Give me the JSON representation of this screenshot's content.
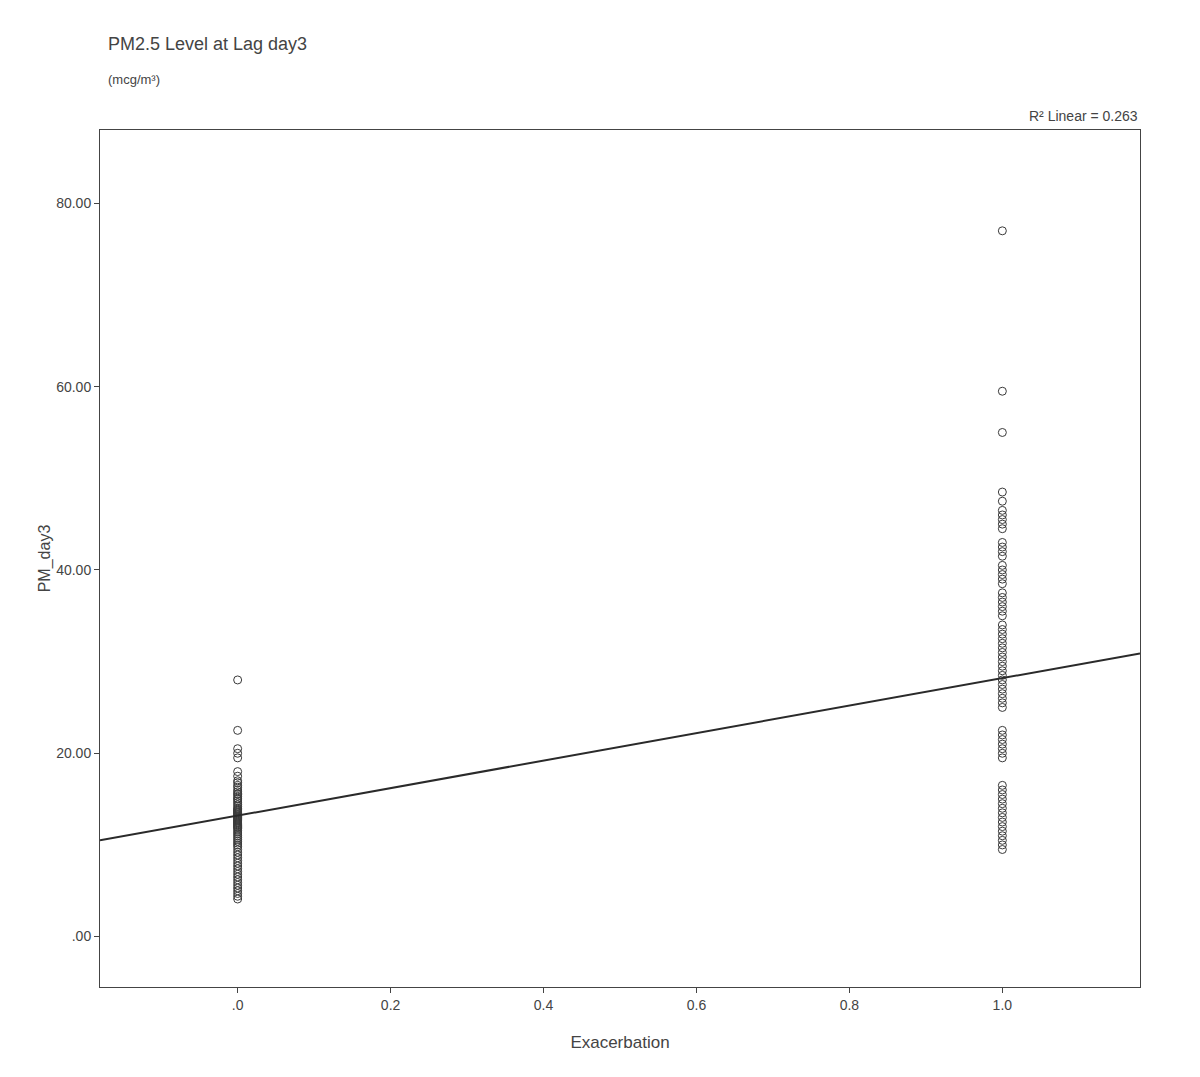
{
  "chart_data": {
    "type": "scatter",
    "title": "PM2.5 Level at Lag day3",
    "subtitle": "(mcg/m³)",
    "xlabel": "Exacerbation",
    "ylabel": "PM_day3",
    "annotations": [
      {
        "text": "R² Linear = 0.263"
      }
    ],
    "xlim": [
      -0.18,
      1.18
    ],
    "ylim": [
      -5.5,
      88
    ],
    "xticks": [
      {
        "value": 0.0,
        "label": ".0"
      },
      0.2,
      0.4,
      0.6,
      0.8,
      {
        "value": 1.0,
        "label": "1.0"
      }
    ],
    "yticks": [
      {
        "value": 0.0,
        "label": ".00"
      },
      {
        "value": 20.0,
        "label": "20.00"
      },
      {
        "value": 40.0,
        "label": "40.00"
      },
      {
        "value": 60.0,
        "label": "60.00"
      },
      {
        "value": 80.0,
        "label": "80.00"
      }
    ],
    "grid": false,
    "series": [
      {
        "type": "scatter",
        "marker": "circle-open",
        "color": "#3a3a3a",
        "x": [
          0,
          0,
          0,
          0,
          0,
          0,
          0,
          0,
          0,
          0,
          0,
          0,
          0,
          0,
          0,
          0,
          0,
          0,
          0,
          0,
          0,
          0,
          0,
          0,
          0,
          0,
          0,
          0,
          0,
          0,
          0,
          0,
          0,
          0,
          0,
          0,
          0,
          0,
          0,
          0,
          0,
          0,
          0,
          0,
          0,
          0,
          0,
          0,
          0,
          0,
          0,
          0,
          0,
          0,
          0,
          0,
          0,
          0,
          0,
          0,
          0,
          0,
          0,
          0,
          0,
          0,
          0,
          0,
          0,
          0,
          0,
          0,
          0,
          0
        ],
        "values": [
          28.0,
          22.5,
          20.5,
          20.0,
          19.5,
          18.0,
          17.5,
          17.0,
          16.8,
          16.5,
          16.3,
          16.0,
          15.8,
          15.6,
          15.5,
          15.3,
          15.1,
          15.0,
          14.8,
          14.6,
          14.4,
          14.2,
          14.0,
          13.9,
          13.8,
          13.7,
          13.6,
          13.5,
          13.4,
          13.3,
          13.2,
          13.1,
          13.0,
          12.9,
          12.8,
          12.7,
          12.6,
          12.5,
          12.4,
          12.3,
          12.2,
          12.1,
          12.0,
          11.9,
          11.8,
          11.6,
          11.4,
          11.2,
          11.0,
          10.8,
          10.6,
          10.4,
          10.2,
          10.0,
          9.8,
          9.5,
          9.2,
          8.9,
          8.6,
          8.3,
          8.0,
          7.7,
          7.4,
          7.1,
          6.8,
          6.5,
          6.2,
          5.9,
          5.6,
          5.3,
          5.0,
          4.7,
          4.4,
          4.1
        ]
      },
      {
        "type": "scatter",
        "marker": "circle-open",
        "color": "#3a3a3a",
        "x": [
          1,
          1,
          1,
          1,
          1,
          1,
          1,
          1,
          1,
          1,
          1,
          1,
          1,
          1,
          1,
          1,
          1,
          1,
          1,
          1,
          1,
          1,
          1,
          1,
          1,
          1,
          1,
          1,
          1,
          1,
          1,
          1,
          1,
          1,
          1,
          1,
          1,
          1,
          1,
          1,
          1,
          1,
          1,
          1,
          1,
          1,
          1,
          1,
          1,
          1,
          1,
          1,
          1,
          1,
          1,
          1,
          1,
          1,
          1,
          1,
          1,
          1,
          1,
          1,
          1,
          1
        ],
        "values": [
          77.0,
          59.5,
          55.0,
          48.5,
          47.5,
          46.5,
          46.0,
          45.5,
          45.0,
          44.5,
          43.0,
          42.5,
          42.0,
          41.5,
          40.5,
          40.0,
          39.5,
          39.0,
          38.5,
          37.5,
          37.0,
          36.5,
          36.0,
          35.5,
          35.0,
          34.0,
          33.5,
          33.0,
          32.5,
          32.0,
          31.5,
          31.0,
          30.5,
          30.0,
          29.5,
          29.0,
          28.5,
          28.0,
          27.5,
          27.0,
          26.5,
          26.0,
          25.5,
          25.0,
          22.5,
          22.0,
          21.5,
          21.0,
          20.5,
          20.0,
          19.5,
          16.5,
          16.0,
          15.5,
          15.0,
          14.5,
          14.0,
          13.5,
          13.0,
          12.5,
          12.0,
          11.5,
          11.0,
          10.5,
          10.0,
          9.5
        ]
      },
      {
        "type": "line",
        "line_style": "solid",
        "color": "#2a2a2a",
        "x": [
          -0.18,
          1.18
        ],
        "values": [
          10.5,
          30.9
        ]
      }
    ]
  }
}
